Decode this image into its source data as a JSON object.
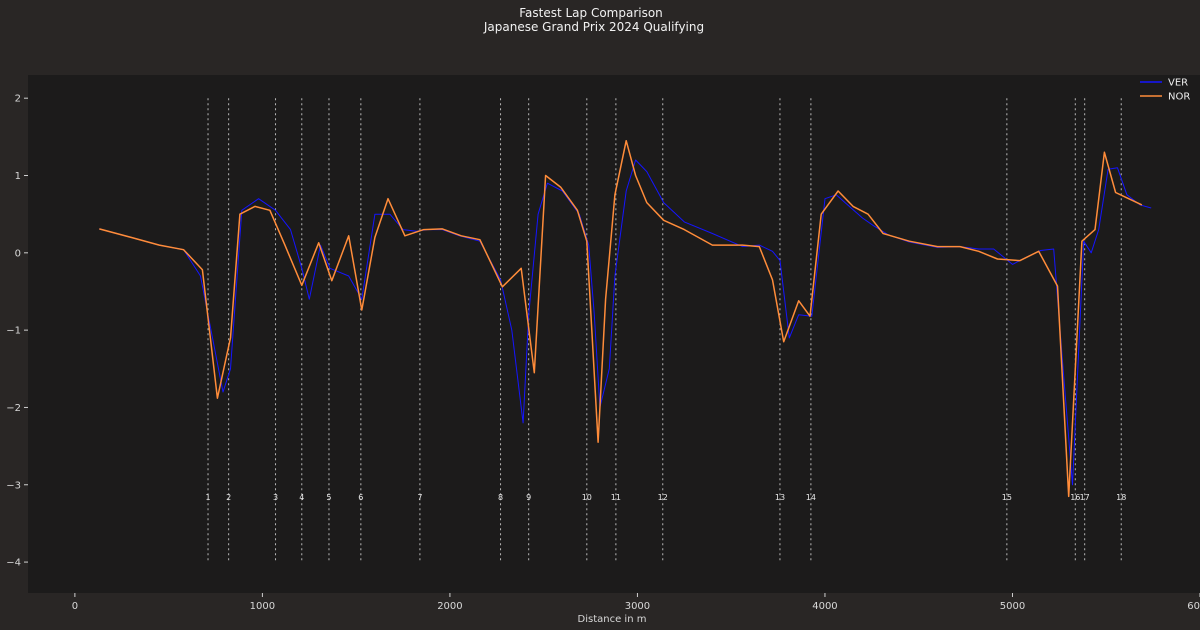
{
  "chart_data": {
    "type": "line",
    "title": "Fastest Lap Comparison",
    "subtitle": "Japanese Grand Prix 2024 Qualifying",
    "xlabel": "Distance in m",
    "ylabel": "",
    "xlim": [
      -250,
      6000
    ],
    "ylim": [
      -4.4,
      2.3
    ],
    "xticks": [
      0,
      1000,
      2000,
      3000,
      4000,
      5000,
      6000
    ],
    "yticks": [
      2,
      1,
      0,
      -1,
      -2,
      -3,
      -4
    ],
    "xtick_labels": [
      "0",
      "1000",
      "2000",
      "3000",
      "4000",
      "5000",
      "6000"
    ],
    "ytick_labels": [
      "2",
      "1",
      "0",
      "−1",
      "−2",
      "−3",
      "−4"
    ],
    "legend_position": "top-right",
    "grid": false,
    "background": "#1c1b1b",
    "series": [
      {
        "name": "VER",
        "color": "#1515ff",
        "x": [
          130,
          300,
          450,
          580,
          670,
          710,
          790,
          830,
          890,
          980,
          1070,
          1150,
          1210,
          1250,
          1310,
          1360,
          1460,
          1530,
          1600,
          1680,
          1750,
          1820,
          1880,
          1960,
          2050,
          2160,
          2270,
          2330,
          2390,
          2420,
          2470,
          2520,
          2600,
          2690,
          2740,
          2770,
          2800,
          2850,
          2880,
          2940,
          2990,
          3050,
          3140,
          3250,
          3400,
          3560,
          3650,
          3720,
          3760,
          3810,
          3860,
          3930,
          4000,
          4060,
          4130,
          4200,
          4260,
          4340,
          4450,
          4600,
          4720,
          4820,
          4900,
          5000,
          5080,
          5150,
          5220,
          5270,
          5320,
          5380,
          5420,
          5460,
          5510,
          5560,
          5610,
          5680,
          5740
        ],
        "values": [
          0.31,
          0.2,
          0.1,
          0.04,
          -0.3,
          -0.8,
          -1.8,
          -1.5,
          0.55,
          0.7,
          0.55,
          0.3,
          -0.2,
          -0.6,
          0.1,
          -0.2,
          -0.3,
          -0.6,
          0.5,
          0.5,
          0.3,
          0.28,
          0.3,
          0.3,
          0.22,
          0.15,
          -0.35,
          -1.0,
          -2.2,
          -0.8,
          0.5,
          0.9,
          0.8,
          0.5,
          0.1,
          -0.8,
          -2.0,
          -1.5,
          -0.3,
          0.8,
          1.2,
          1.05,
          0.65,
          0.4,
          0.25,
          0.08,
          0.1,
          0.02,
          -0.1,
          -1.1,
          -0.8,
          -0.82,
          0.7,
          0.75,
          0.6,
          0.45,
          0.35,
          0.23,
          0.14,
          0.07,
          0.08,
          0.05,
          0.05,
          -0.15,
          -0.05,
          0.03,
          0.05,
          -1.5,
          -3.0,
          0.15,
          0.0,
          0.3,
          1.08,
          1.1,
          0.75,
          0.62,
          0.58
        ]
      },
      {
        "name": "NOR",
        "color": "#ff8c3a",
        "x": [
          130,
          300,
          450,
          580,
          680,
          760,
          830,
          880,
          960,
          1040,
          1120,
          1210,
          1300,
          1370,
          1460,
          1530,
          1600,
          1670,
          1760,
          1860,
          1960,
          2060,
          2160,
          2280,
          2380,
          2450,
          2510,
          2590,
          2680,
          2730,
          2790,
          2830,
          2880,
          2940,
          2990,
          3050,
          3140,
          3250,
          3400,
          3560,
          3650,
          3720,
          3780,
          3860,
          3920,
          3980,
          4070,
          4150,
          4230,
          4310,
          4450,
          4600,
          4720,
          4820,
          4920,
          5040,
          5140,
          5240,
          5300,
          5370,
          5440,
          5490,
          5550,
          5620,
          5690
        ],
        "values": [
          0.31,
          0.2,
          0.1,
          0.04,
          -0.22,
          -1.88,
          -1.1,
          0.5,
          0.6,
          0.55,
          0.1,
          -0.42,
          0.13,
          -0.36,
          0.22,
          -0.74,
          0.2,
          0.7,
          0.22,
          0.3,
          0.31,
          0.22,
          0.17,
          -0.44,
          -0.2,
          -1.55,
          1.0,
          0.85,
          0.55,
          0.15,
          -2.45,
          -0.6,
          0.75,
          1.45,
          1.0,
          0.65,
          0.42,
          0.3,
          0.1,
          0.1,
          0.08,
          -0.35,
          -1.15,
          -0.62,
          -0.82,
          0.5,
          0.8,
          0.6,
          0.5,
          0.25,
          0.15,
          0.08,
          0.08,
          0.02,
          -0.08,
          -0.1,
          0.02,
          -0.43,
          -3.15,
          0.15,
          0.3,
          1.3,
          0.78,
          0.7,
          0.62
        ]
      }
    ],
    "corners": {
      "labels": [
        "1",
        "2",
        "3",
        "4",
        "5",
        "6",
        "7",
        "8",
        "9",
        "10",
        "11",
        "12",
        "13",
        "14",
        "15",
        "16",
        "17",
        "18"
      ],
      "x": [
        710,
        820,
        1070,
        1210,
        1355,
        1525,
        1840,
        2270,
        2420,
        2730,
        2885,
        3135,
        3760,
        3925,
        4970,
        5335,
        5385,
        5580
      ],
      "line_from": -4,
      "line_to": 2,
      "label_y": -3.2
    }
  }
}
